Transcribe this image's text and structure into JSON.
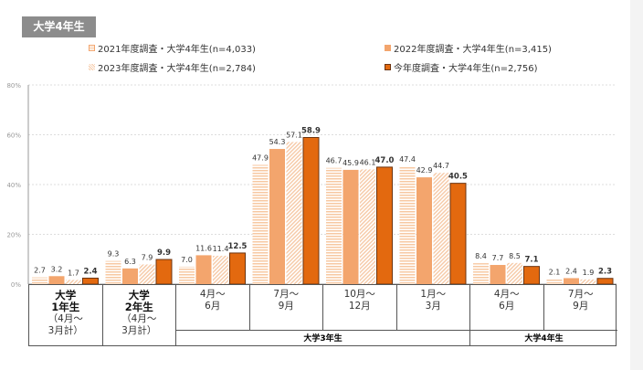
{
  "header": {
    "tag": "大学4年生"
  },
  "colors": {
    "2021": "#f7c8a2",
    "2022": "#f3a56d",
    "2023": "#f6c9a6",
    "current": "#e3690f"
  },
  "chart_data": {
    "type": "bar",
    "ylim": [
      0,
      80
    ],
    "yticks": [
      "0%",
      "20%",
      "40%",
      "60%",
      "80%"
    ],
    "grid": true,
    "legend_placement": "top",
    "categories": [
      {
        "main": "大学\n1年生",
        "sub": "（4月～\n3月計）"
      },
      {
        "main": "大学\n2年生",
        "sub": "（4月～\n3月計）"
      },
      {
        "main": "4月～\n6月"
      },
      {
        "main": "7月～\n9月"
      },
      {
        "main": "10月～\n12月"
      },
      {
        "main": "1月～\n3月"
      },
      {
        "main": "4月～\n6月"
      },
      {
        "main": "7月～\n9月"
      }
    ],
    "groups": [
      {
        "label": "大学3年生"
      },
      {
        "label": "大学4年生"
      }
    ],
    "series": [
      {
        "name": "2021年度調査・大学4年生(n=4,033)",
        "pattern": "horizontal-stripes",
        "values": [
          2.7,
          9.3,
          7.0,
          47.9,
          46.7,
          47.4,
          8.4,
          2.1
        ]
      },
      {
        "name": "2022年度調査・大学4年生(n=3,415)",
        "pattern": "solid",
        "values": [
          3.2,
          6.3,
          11.6,
          54.3,
          45.9,
          42.9,
          7.7,
          2.4
        ]
      },
      {
        "name": "2023年度調査・大学4年生(n=2,784)",
        "pattern": "diagonal-hatch",
        "values": [
          1.7,
          7.9,
          11.4,
          57.1,
          46.1,
          44.7,
          8.5,
          1.9
        ]
      },
      {
        "name": "今年度調査・大学4年生(n=2,756)",
        "pattern": "solid-outlined",
        "values": [
          2.4,
          9.9,
          12.5,
          58.9,
          47.0,
          40.5,
          7.1,
          2.3
        ]
      }
    ]
  }
}
